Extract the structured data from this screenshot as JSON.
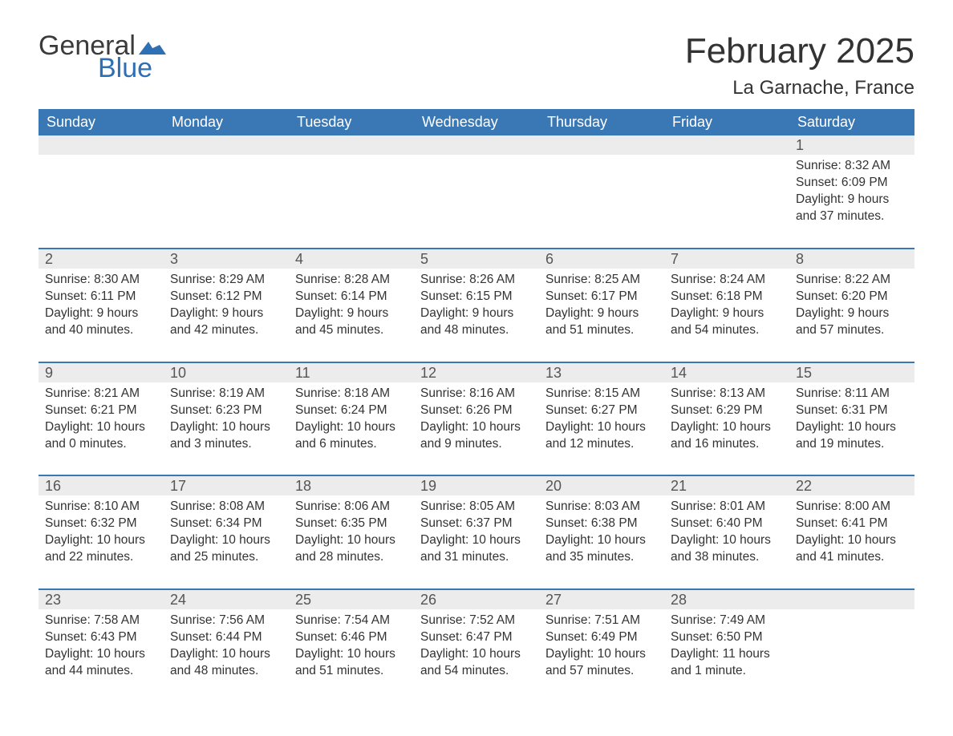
{
  "logo": {
    "text1": "General",
    "text2": "Blue",
    "flag_color": "#2f6fb3"
  },
  "header": {
    "month_title": "February 2025",
    "location": "La Garnache, France"
  },
  "colors": {
    "header_bg": "#3a78b5",
    "header_text": "#ffffff",
    "week_divider": "#3a78b5",
    "daynum_bg": "#ececec",
    "body_text": "#333333",
    "page_bg": "#ffffff"
  },
  "typography": {
    "month_title_fontsize": 44,
    "location_fontsize": 24,
    "dayheader_fontsize": 18,
    "daynum_fontsize": 18,
    "info_fontsize": 15.5
  },
  "day_names": [
    "Sunday",
    "Monday",
    "Tuesday",
    "Wednesday",
    "Thursday",
    "Friday",
    "Saturday"
  ],
  "weeks": [
    [
      null,
      null,
      null,
      null,
      null,
      null,
      {
        "n": "1",
        "sunrise": "Sunrise: 8:32 AM",
        "sunset": "Sunset: 6:09 PM",
        "daylight": "Daylight: 9 hours and 37 minutes."
      }
    ],
    [
      {
        "n": "2",
        "sunrise": "Sunrise: 8:30 AM",
        "sunset": "Sunset: 6:11 PM",
        "daylight": "Daylight: 9 hours and 40 minutes."
      },
      {
        "n": "3",
        "sunrise": "Sunrise: 8:29 AM",
        "sunset": "Sunset: 6:12 PM",
        "daylight": "Daylight: 9 hours and 42 minutes."
      },
      {
        "n": "4",
        "sunrise": "Sunrise: 8:28 AM",
        "sunset": "Sunset: 6:14 PM",
        "daylight": "Daylight: 9 hours and 45 minutes."
      },
      {
        "n": "5",
        "sunrise": "Sunrise: 8:26 AM",
        "sunset": "Sunset: 6:15 PM",
        "daylight": "Daylight: 9 hours and 48 minutes."
      },
      {
        "n": "6",
        "sunrise": "Sunrise: 8:25 AM",
        "sunset": "Sunset: 6:17 PM",
        "daylight": "Daylight: 9 hours and 51 minutes."
      },
      {
        "n": "7",
        "sunrise": "Sunrise: 8:24 AM",
        "sunset": "Sunset: 6:18 PM",
        "daylight": "Daylight: 9 hours and 54 minutes."
      },
      {
        "n": "8",
        "sunrise": "Sunrise: 8:22 AM",
        "sunset": "Sunset: 6:20 PM",
        "daylight": "Daylight: 9 hours and 57 minutes."
      }
    ],
    [
      {
        "n": "9",
        "sunrise": "Sunrise: 8:21 AM",
        "sunset": "Sunset: 6:21 PM",
        "daylight": "Daylight: 10 hours and 0 minutes."
      },
      {
        "n": "10",
        "sunrise": "Sunrise: 8:19 AM",
        "sunset": "Sunset: 6:23 PM",
        "daylight": "Daylight: 10 hours and 3 minutes."
      },
      {
        "n": "11",
        "sunrise": "Sunrise: 8:18 AM",
        "sunset": "Sunset: 6:24 PM",
        "daylight": "Daylight: 10 hours and 6 minutes."
      },
      {
        "n": "12",
        "sunrise": "Sunrise: 8:16 AM",
        "sunset": "Sunset: 6:26 PM",
        "daylight": "Daylight: 10 hours and 9 minutes."
      },
      {
        "n": "13",
        "sunrise": "Sunrise: 8:15 AM",
        "sunset": "Sunset: 6:27 PM",
        "daylight": "Daylight: 10 hours and 12 minutes."
      },
      {
        "n": "14",
        "sunrise": "Sunrise: 8:13 AM",
        "sunset": "Sunset: 6:29 PM",
        "daylight": "Daylight: 10 hours and 16 minutes."
      },
      {
        "n": "15",
        "sunrise": "Sunrise: 8:11 AM",
        "sunset": "Sunset: 6:31 PM",
        "daylight": "Daylight: 10 hours and 19 minutes."
      }
    ],
    [
      {
        "n": "16",
        "sunrise": "Sunrise: 8:10 AM",
        "sunset": "Sunset: 6:32 PM",
        "daylight": "Daylight: 10 hours and 22 minutes."
      },
      {
        "n": "17",
        "sunrise": "Sunrise: 8:08 AM",
        "sunset": "Sunset: 6:34 PM",
        "daylight": "Daylight: 10 hours and 25 minutes."
      },
      {
        "n": "18",
        "sunrise": "Sunrise: 8:06 AM",
        "sunset": "Sunset: 6:35 PM",
        "daylight": "Daylight: 10 hours and 28 minutes."
      },
      {
        "n": "19",
        "sunrise": "Sunrise: 8:05 AM",
        "sunset": "Sunset: 6:37 PM",
        "daylight": "Daylight: 10 hours and 31 minutes."
      },
      {
        "n": "20",
        "sunrise": "Sunrise: 8:03 AM",
        "sunset": "Sunset: 6:38 PM",
        "daylight": "Daylight: 10 hours and 35 minutes."
      },
      {
        "n": "21",
        "sunrise": "Sunrise: 8:01 AM",
        "sunset": "Sunset: 6:40 PM",
        "daylight": "Daylight: 10 hours and 38 minutes."
      },
      {
        "n": "22",
        "sunrise": "Sunrise: 8:00 AM",
        "sunset": "Sunset: 6:41 PM",
        "daylight": "Daylight: 10 hours and 41 minutes."
      }
    ],
    [
      {
        "n": "23",
        "sunrise": "Sunrise: 7:58 AM",
        "sunset": "Sunset: 6:43 PM",
        "daylight": "Daylight: 10 hours and 44 minutes."
      },
      {
        "n": "24",
        "sunrise": "Sunrise: 7:56 AM",
        "sunset": "Sunset: 6:44 PM",
        "daylight": "Daylight: 10 hours and 48 minutes."
      },
      {
        "n": "25",
        "sunrise": "Sunrise: 7:54 AM",
        "sunset": "Sunset: 6:46 PM",
        "daylight": "Daylight: 10 hours and 51 minutes."
      },
      {
        "n": "26",
        "sunrise": "Sunrise: 7:52 AM",
        "sunset": "Sunset: 6:47 PM",
        "daylight": "Daylight: 10 hours and 54 minutes."
      },
      {
        "n": "27",
        "sunrise": "Sunrise: 7:51 AM",
        "sunset": "Sunset: 6:49 PM",
        "daylight": "Daylight: 10 hours and 57 minutes."
      },
      {
        "n": "28",
        "sunrise": "Sunrise: 7:49 AM",
        "sunset": "Sunset: 6:50 PM",
        "daylight": "Daylight: 11 hours and 1 minute."
      },
      null
    ]
  ]
}
